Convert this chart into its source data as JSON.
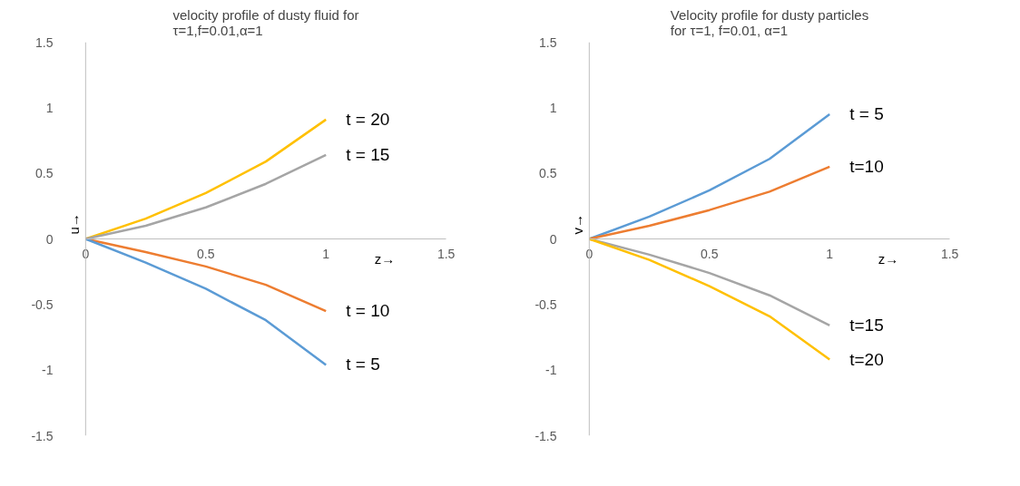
{
  "chart_data": [
    {
      "type": "line",
      "title": "velocity profile of dusty fluid for\nτ=1,f=0.01,α=1",
      "xlabel": "z→",
      "ylabel": "u→",
      "x": [
        0,
        0.25,
        0.5,
        0.75,
        1
      ],
      "series": [
        {
          "name": "t = 20",
          "color": "#ffc000",
          "values": [
            0,
            0.155,
            0.35,
            0.59,
            0.91
          ]
        },
        {
          "name": "t = 15",
          "color": "#a5a5a5",
          "values": [
            0,
            0.1,
            0.24,
            0.42,
            0.64
          ]
        },
        {
          "name": "t = 10",
          "color": "#ed7d31",
          "values": [
            0,
            -0.1,
            -0.21,
            -0.35,
            -0.55
          ]
        },
        {
          "name": "t = 5",
          "color": "#5b9bd5",
          "values": [
            0,
            -0.18,
            -0.38,
            -0.62,
            -0.96
          ]
        }
      ],
      "xlim": [
        0,
        1.5
      ],
      "ylim": [
        -1.5,
        1.5
      ],
      "xticks": [
        0,
        0.5,
        1,
        1.5
      ],
      "yticks": [
        -1.5,
        -1,
        -0.5,
        0,
        0.5,
        1,
        1.5
      ],
      "line_style": "solid",
      "marker": "none"
    },
    {
      "type": "line",
      "title": "Velocity profile for dusty particles\nfor τ=1, f=0.01, α=1",
      "xlabel": "z→",
      "ylabel": "v→",
      "x": [
        0,
        0.25,
        0.5,
        0.75,
        1
      ],
      "series": [
        {
          "name": "t = 5",
          "color": "#5b9bd5",
          "values": [
            0,
            0.17,
            0.37,
            0.61,
            0.95
          ]
        },
        {
          "name": "t=10",
          "color": "#ed7d31",
          "values": [
            0,
            0.1,
            0.22,
            0.36,
            0.55
          ]
        },
        {
          "name": "t=15",
          "color": "#a5a5a5",
          "values": [
            0,
            -0.12,
            -0.26,
            -0.43,
            -0.66
          ]
        },
        {
          "name": "t=20",
          "color": "#ffc000",
          "values": [
            0,
            -0.16,
            -0.36,
            -0.59,
            -0.92
          ]
        }
      ],
      "xlim": [
        0,
        1.5
      ],
      "ylim": [
        -1.5,
        1.5
      ],
      "xticks": [
        0,
        0.5,
        1,
        1.5
      ],
      "yticks": [
        -1.5,
        -1,
        -0.5,
        0,
        0.5,
        1,
        1.5
      ],
      "line_style": "solid",
      "marker": "none"
    }
  ]
}
